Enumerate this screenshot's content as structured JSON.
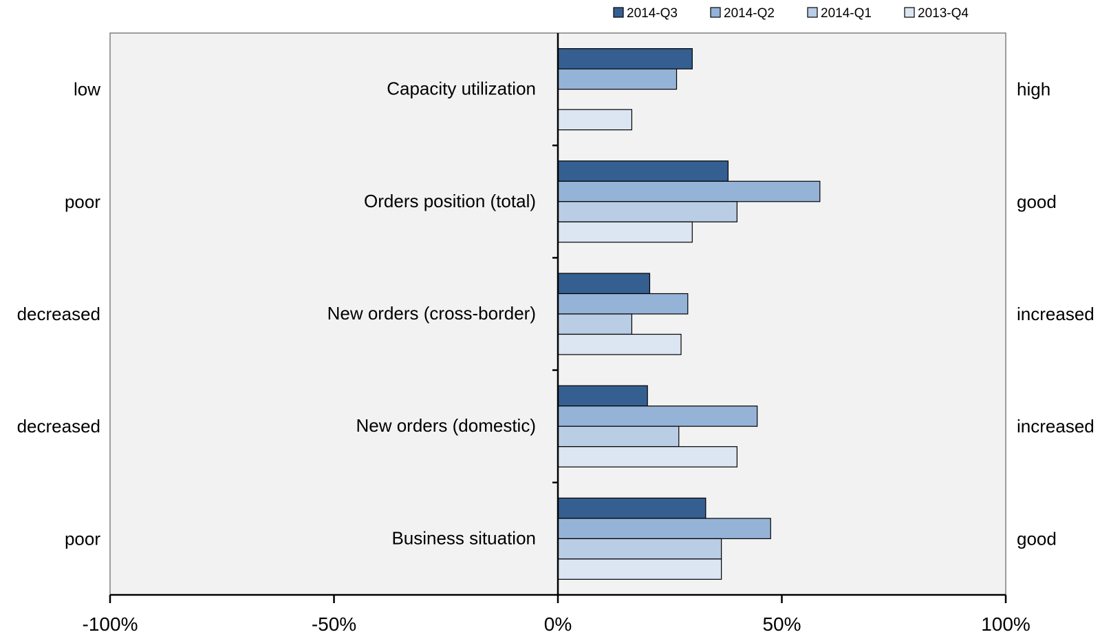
{
  "chart_data": {
    "type": "bar",
    "orientation": "horizontal",
    "categories": [
      "Capacity utilization",
      "Orders position (total)",
      "New orders (cross-border)",
      "New orders (domestic)",
      "Business situation"
    ],
    "left_labels": [
      "low",
      "poor",
      "decreased",
      "decreased",
      "poor"
    ],
    "right_labels": [
      "high",
      "good",
      "increased",
      "increased",
      "good"
    ],
    "series": [
      {
        "name": "2014-Q3",
        "color": "#355f91",
        "values": [
          30,
          38,
          20.5,
          20,
          33
        ]
      },
      {
        "name": "2014-Q2",
        "color": "#95b3d7",
        "values": [
          26.5,
          58.5,
          29,
          44.5,
          47.5
        ]
      },
      {
        "name": "2014-Q1",
        "color": "#b9cde5",
        "values": [
          null,
          40,
          16.5,
          27,
          36.5
        ]
      },
      {
        "name": "2013-Q4",
        "color": "#dce6f2",
        "values": [
          16.5,
          30,
          27.5,
          40,
          36.5
        ]
      }
    ],
    "xlim": [
      -100,
      100
    ],
    "xticks": [
      -100,
      -50,
      0,
      50,
      100
    ],
    "xtick_labels": [
      "-100%",
      "-50%",
      "0%",
      "50%",
      "100%"
    ],
    "plot_background": "#f2f2f2",
    "legend_position": "top-right",
    "grid": false
  }
}
